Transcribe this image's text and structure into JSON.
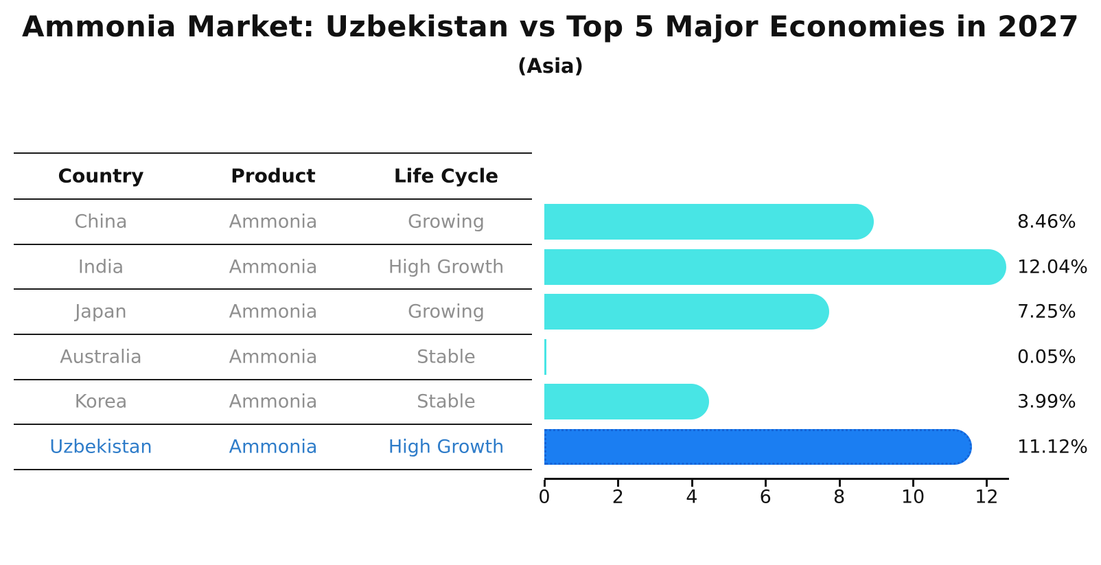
{
  "title": "Ammonia Market: Uzbekistan vs Top 5 Major Economies in 2027",
  "subtitle": "(Asia)",
  "table": {
    "headers": [
      "Country",
      "Product",
      "Life Cycle"
    ],
    "rows": [
      {
        "country": "China",
        "product": "Ammonia",
        "life_cycle": "Growing",
        "highlight": false
      },
      {
        "country": "India",
        "product": "Ammonia",
        "life_cycle": "High Growth",
        "highlight": false
      },
      {
        "country": "Japan",
        "product": "Ammonia",
        "life_cycle": "Growing",
        "highlight": false
      },
      {
        "country": "Australia",
        "product": "Ammonia",
        "life_cycle": "Stable",
        "highlight": false
      },
      {
        "country": "Korea",
        "product": "Ammonia",
        "life_cycle": "Stable",
        "highlight": false
      },
      {
        "country": "Uzbekistan",
        "product": "Ammonia",
        "life_cycle": "High Growth",
        "highlight": true
      }
    ]
  },
  "chart_data": {
    "type": "bar",
    "orientation": "horizontal",
    "title": "Ammonia Market: Uzbekistan vs Top 5 Major Economies in 2027",
    "subtitle": "(Asia)",
    "categories": [
      "China",
      "India",
      "Japan",
      "Australia",
      "Korea",
      "Uzbekistan"
    ],
    "values": [
      8.46,
      12.04,
      7.25,
      0.05,
      3.99,
      11.12
    ],
    "labels": [
      "8.46%",
      "12.04%",
      "7.25%",
      "0.05%",
      "3.99%",
      "11.12%"
    ],
    "highlight_index": 5,
    "x_ticks": [
      0,
      2,
      4,
      6,
      8,
      10,
      12
    ],
    "xlim": [
      0,
      12.6
    ],
    "grid": false,
    "legend": false,
    "value_unit": "%"
  },
  "colors": {
    "bar": "#48e5e5",
    "highlight_bar": "#1b7ef2",
    "highlight_border": "#1563d6",
    "highlight_text": "#2e7cc9",
    "row_text": "#8f8f8f",
    "header_text": "#111111",
    "axis": "#111111"
  }
}
